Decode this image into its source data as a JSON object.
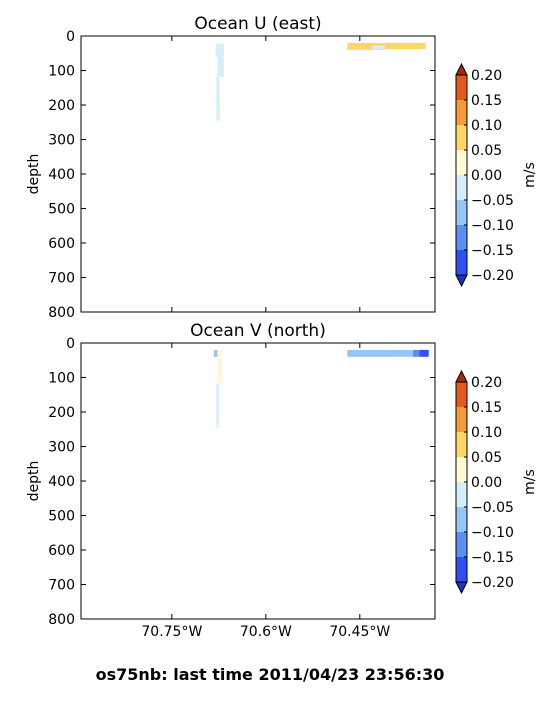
{
  "suptitle": "os75nb: last time 2011/04/23 23:56:30",
  "colors": {
    "levels": [
      "#3050f0",
      "#5a8ef0",
      "#96c6f5",
      "#d6eefa",
      "#fffad2",
      "#ffd566",
      "#f59a3a",
      "#e5581d"
    ],
    "under": "#2030c8",
    "over": "#a82a0a"
  },
  "chart_data": [
    {
      "type": "heatmap",
      "title": "Ocean U (east)",
      "ylabel": "depth",
      "ylim": [
        800,
        0
      ],
      "yticks": [
        "0",
        "100",
        "200",
        "300",
        "400",
        "500",
        "600",
        "700",
        "800"
      ],
      "xlim": [
        -70.895,
        -70.33
      ],
      "xticks": [
        "70.75°W",
        "70.6°W",
        "70.45°W"
      ],
      "xtick_values": [
        -70.75,
        -70.6,
        -70.45
      ],
      "show_xticklabels": false,
      "colorbar": {
        "label": "m/s",
        "levels": [
          -0.2,
          -0.15,
          -0.1,
          -0.05,
          0.0,
          0.05,
          0.1,
          0.15,
          0.2
        ],
        "ticklabels": [
          "0.20",
          "0.15",
          "0.10",
          "0.05",
          "0.00",
          "−0.05",
          "−0.10",
          "−0.15",
          "−0.20"
        ],
        "extend": "both"
      },
      "cells": [
        {
          "lon": [
            -70.68,
            -70.673
          ],
          "depth": [
            22,
            60
          ],
          "value": -0.03
        },
        {
          "lon": [
            -70.673,
            -70.667
          ],
          "depth": [
            22,
            60
          ],
          "value": -0.02
        },
        {
          "lon": [
            -70.677,
            -70.667
          ],
          "depth": [
            60,
            118
          ],
          "value": -0.02
        },
        {
          "lon": [
            -70.679,
            -70.674
          ],
          "depth": [
            118,
            245
          ],
          "value": -0.01
        },
        {
          "lon": [
            -70.674,
            -70.672
          ],
          "depth": [
            180,
            240
          ],
          "value": 0.02
        },
        {
          "lon": [
            -70.47,
            -70.41
          ],
          "depth": [
            20,
            40
          ],
          "value": 0.08
        },
        {
          "lon": [
            -70.43,
            -70.39
          ],
          "depth": [
            28,
            38
          ],
          "value": -0.02
        },
        {
          "lon": [
            -70.41,
            -70.37
          ],
          "depth": [
            20,
            38
          ],
          "value": 0.07
        },
        {
          "lon": [
            -70.37,
            -70.345
          ],
          "depth": [
            20,
            38
          ],
          "value": 0.06
        }
      ]
    },
    {
      "type": "heatmap",
      "title": "Ocean V (north)",
      "ylabel": "depth",
      "ylim": [
        800,
        0
      ],
      "yticks": [
        "0",
        "100",
        "200",
        "300",
        "400",
        "500",
        "600",
        "700",
        "800"
      ],
      "xlim": [
        -70.895,
        -70.33
      ],
      "xticks": [
        "70.75°W",
        "70.6°W",
        "70.45°W"
      ],
      "xtick_values": [
        -70.75,
        -70.6,
        -70.45
      ],
      "show_xticklabels": true,
      "colorbar": {
        "label": "m/s",
        "levels": [
          -0.2,
          -0.15,
          -0.1,
          -0.05,
          0.0,
          0.05,
          0.1,
          0.15,
          0.2
        ],
        "ticklabels": [
          "0.20",
          "0.15",
          "0.10",
          "0.05",
          "0.00",
          "−0.05",
          "−0.10",
          "−0.15",
          "−0.20"
        ],
        "extend": "both"
      },
      "cells": [
        {
          "lon": [
            -70.683,
            -70.677
          ],
          "depth": [
            20,
            40
          ],
          "value": -0.07
        },
        {
          "lon": [
            -70.677,
            -70.67
          ],
          "depth": [
            20,
            118
          ],
          "value": 0.02
        },
        {
          "lon": [
            -70.679,
            -70.675
          ],
          "depth": [
            118,
            245
          ],
          "value": -0.02
        },
        {
          "lon": [
            -70.47,
            -70.395
          ],
          "depth": [
            20,
            40
          ],
          "value": -0.08
        },
        {
          "lon": [
            -70.395,
            -70.365
          ],
          "depth": [
            20,
            40
          ],
          "value": -0.09
        },
        {
          "lon": [
            -70.365,
            -70.355
          ],
          "depth": [
            20,
            40
          ],
          "value": -0.12
        },
        {
          "lon": [
            -70.355,
            -70.34
          ],
          "depth": [
            20,
            40
          ],
          "value": -0.17
        }
      ]
    }
  ]
}
